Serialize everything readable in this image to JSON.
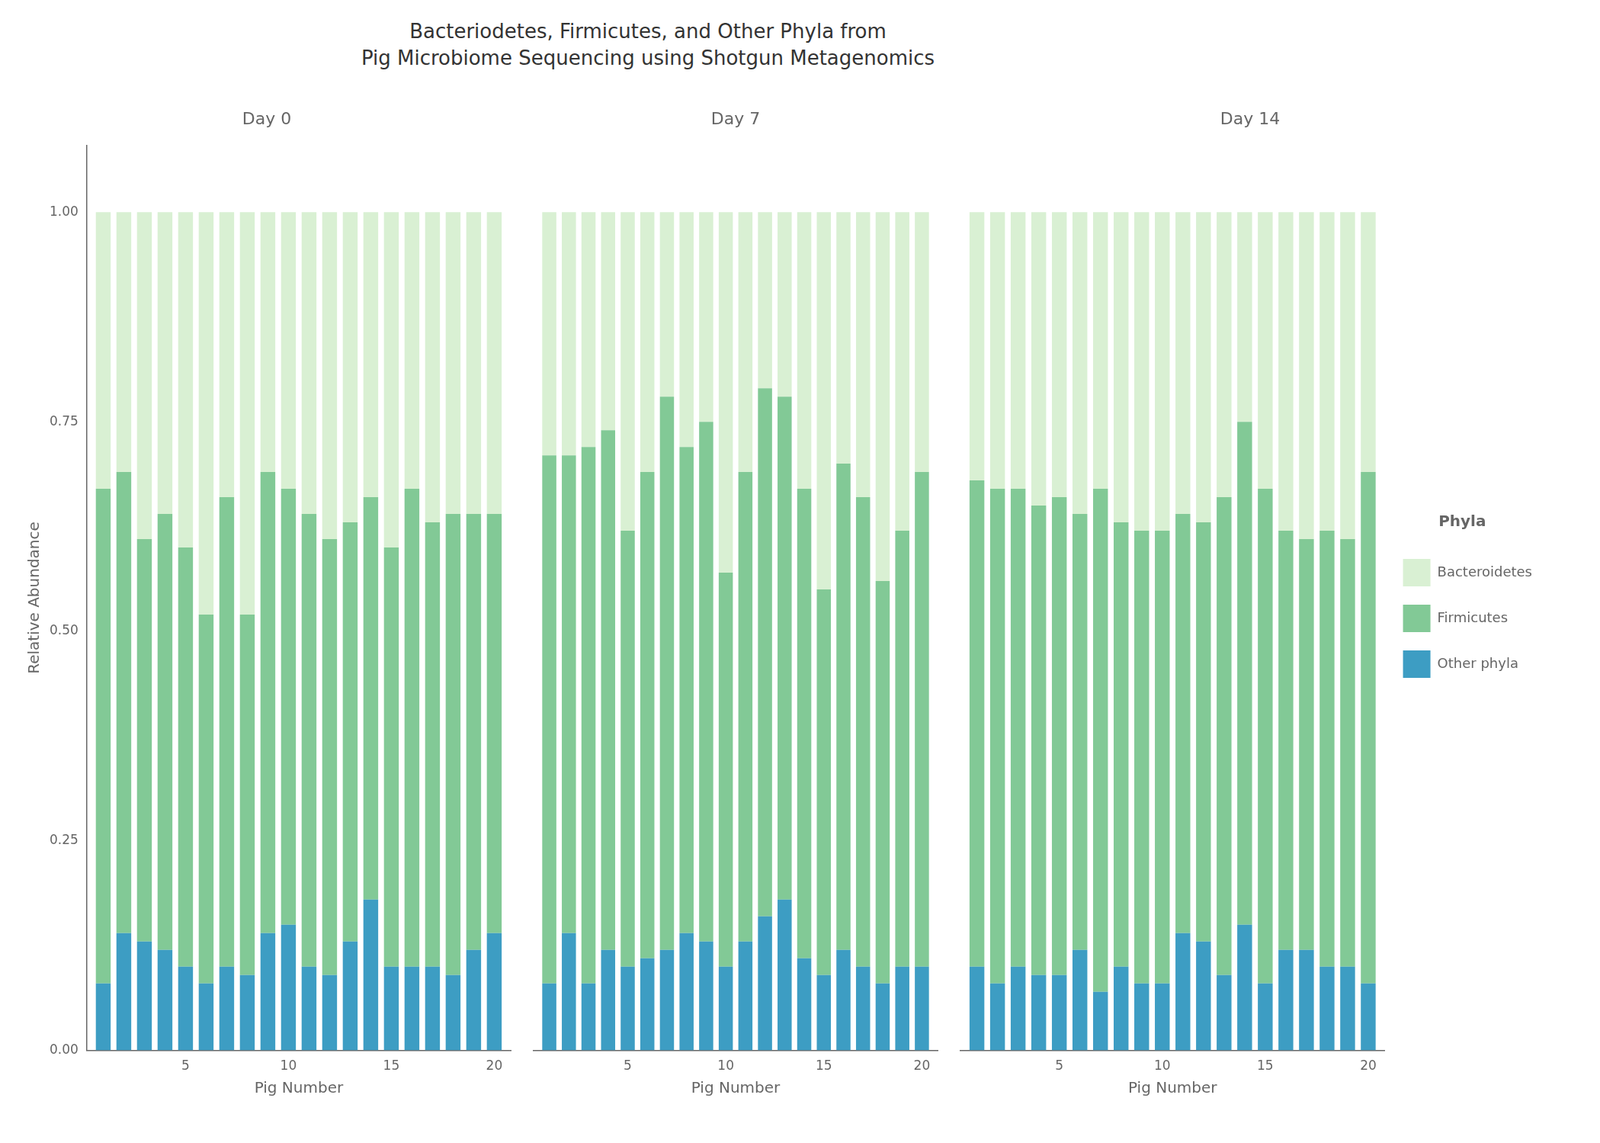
{
  "title": "Bacteriodetes, Firmicutes, and Other Phyla from\nPig Microbiome Sequencing using Shotgun Metagenomics",
  "chart_data": [
    {
      "type": "bar",
      "title": "Day 0",
      "xlabel": "Pig Number",
      "ylabel": "Relative Abundance",
      "x": [
        1,
        2,
        3,
        4,
        5,
        6,
        7,
        8,
        9,
        10,
        11,
        12,
        13,
        14,
        15,
        16,
        17,
        18,
        19,
        20
      ],
      "series": [
        {
          "name": "Other phyla",
          "color": "#3d9dc3",
          "values": [
            0.08,
            0.14,
            0.13,
            0.12,
            0.1,
            0.08,
            0.1,
            0.09,
            0.14,
            0.15,
            0.1,
            0.09,
            0.13,
            0.18,
            0.1,
            0.1,
            0.1,
            0.09,
            0.12,
            0.14
          ]
        },
        {
          "name": "Firmicutes",
          "color": "#82c996",
          "values": [
            0.59,
            0.55,
            0.48,
            0.52,
            0.5,
            0.44,
            0.56,
            0.43,
            0.55,
            0.52,
            0.54,
            0.52,
            0.5,
            0.48,
            0.5,
            0.57,
            0.53,
            0.55,
            0.52,
            0.5
          ]
        },
        {
          "name": "Bacteroidetes",
          "color": "#d9f0d3",
          "values": [
            0.33,
            0.31,
            0.39,
            0.36,
            0.4,
            0.48,
            0.34,
            0.48,
            0.31,
            0.33,
            0.36,
            0.39,
            0.37,
            0.34,
            0.4,
            0.33,
            0.37,
            0.36,
            0.36,
            0.36
          ]
        }
      ],
      "xlim": [
        0.2,
        20.8
      ],
      "xticks": [
        5,
        10,
        15,
        20
      ],
      "ylim": [
        0,
        1.08
      ],
      "yticks": [
        {
          "value": 0,
          "label": "0.00"
        },
        0.25,
        {
          "value": 0.5,
          "label": "0.50"
        },
        0.75,
        {
          "value": 1,
          "label": "1.00"
        }
      ],
      "stacked": true,
      "grid": false
    },
    {
      "type": "bar",
      "title": "Day 7",
      "xlabel": "Pig Number",
      "x": [
        1,
        2,
        3,
        4,
        5,
        6,
        7,
        8,
        9,
        10,
        11,
        12,
        13,
        14,
        15,
        16,
        17,
        18,
        19,
        20
      ],
      "series": [
        {
          "name": "Other phyla",
          "color": "#3d9dc3",
          "values": [
            0.08,
            0.14,
            0.08,
            0.12,
            0.1,
            0.11,
            0.12,
            0.14,
            0.13,
            0.1,
            0.13,
            0.16,
            0.18,
            0.11,
            0.09,
            0.12,
            0.1,
            0.08,
            0.1,
            0.1
          ]
        },
        {
          "name": "Firmicutes",
          "color": "#82c996",
          "values": [
            0.63,
            0.57,
            0.64,
            0.62,
            0.52,
            0.58,
            0.66,
            0.58,
            0.62,
            0.47,
            0.56,
            0.63,
            0.6,
            0.56,
            0.46,
            0.58,
            0.56,
            0.48,
            0.52,
            0.59
          ]
        },
        {
          "name": "Bacteroidetes",
          "color": "#d9f0d3",
          "values": [
            0.29,
            0.29,
            0.28,
            0.26,
            0.38,
            0.31,
            0.22,
            0.28,
            0.25,
            0.43,
            0.31,
            0.21,
            0.22,
            0.33,
            0.45,
            0.3,
            0.34,
            0.44,
            0.38,
            0.31
          ]
        }
      ],
      "xlim": [
        0.2,
        20.8
      ],
      "xticks": [
        5,
        10,
        15,
        20
      ],
      "ylim": [
        0,
        1.08
      ],
      "tick_labels": "x",
      "stacked": true,
      "grid": false
    },
    {
      "type": "bar",
      "title": "Day 14",
      "xlabel": "Pig Number",
      "x": [
        1,
        2,
        3,
        4,
        5,
        6,
        7,
        8,
        9,
        10,
        11,
        12,
        13,
        14,
        15,
        16,
        17,
        18,
        19,
        20
      ],
      "series": [
        {
          "name": "Other phyla",
          "color": "#3d9dc3",
          "values": [
            0.1,
            0.08,
            0.1,
            0.09,
            0.09,
            0.12,
            0.07,
            0.1,
            0.08,
            0.08,
            0.14,
            0.13,
            0.09,
            0.15,
            0.08,
            0.12,
            0.12,
            0.1,
            0.1,
            0.08
          ]
        },
        {
          "name": "Firmicutes",
          "color": "#82c996",
          "values": [
            0.58,
            0.59,
            0.57,
            0.56,
            0.57,
            0.52,
            0.6,
            0.53,
            0.54,
            0.54,
            0.5,
            0.5,
            0.57,
            0.6,
            0.59,
            0.5,
            0.49,
            0.52,
            0.51,
            0.61
          ]
        },
        {
          "name": "Bacteroidetes",
          "color": "#d9f0d3",
          "values": [
            0.32,
            0.33,
            0.33,
            0.35,
            0.34,
            0.36,
            0.33,
            0.37,
            0.38,
            0.38,
            0.36,
            0.37,
            0.34,
            0.25,
            0.33,
            0.38,
            0.39,
            0.38,
            0.39,
            0.31
          ]
        }
      ],
      "xlim": [
        0.2,
        20.8
      ],
      "xticks": [
        5,
        10,
        15,
        20
      ],
      "ylim": [
        0,
        1.08
      ],
      "tick_labels": "x",
      "stacked": true,
      "grid": false,
      "legend": "right",
      "legend_title": "Phyla"
    }
  ]
}
